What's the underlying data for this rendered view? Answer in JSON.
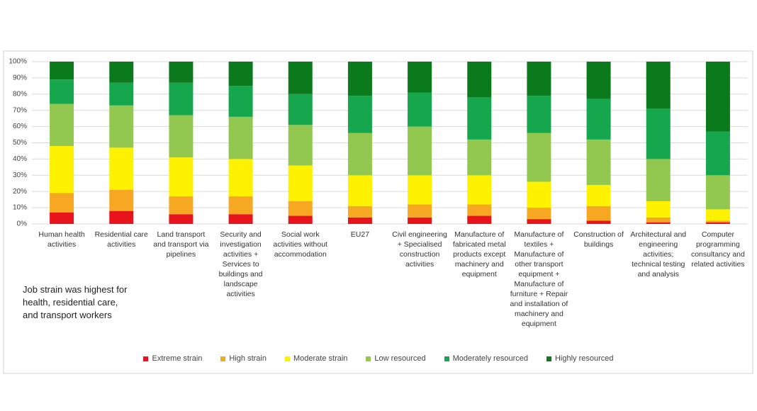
{
  "chart_data": {
    "type": "stacked-bar",
    "annotation": "Job strain was highest for health, residential care, and transport workers",
    "categories": [
      "Human health activities",
      "Residential care activities",
      "Land transport and transport via pipelines",
      "Security and investigation activities + Services to buildings and landscape activities",
      "Social work activities without accommodation",
      "EU27",
      "Civil engineering + Specialised construction activities",
      "Manufacture of fabricated metal products except machinery and equipment",
      "Manufacture of textiles + Manufacture of other transport equipment + Manufacture of furniture + Repair and installation of machinery and equipment",
      "Construction of buildings",
      "Architectural and engineering activities; technical testing and analysis",
      "Computer programming consultancy and related activities"
    ],
    "series": [
      {
        "name": "Extreme strain",
        "color": "#e8141b",
        "values": [
          7,
          8,
          6,
          6,
          5,
          4,
          4,
          5,
          3,
          2,
          1,
          1
        ]
      },
      {
        "name": "High strain",
        "color": "#f7a823",
        "values": [
          12,
          13,
          11,
          11,
          9,
          7,
          8,
          7,
          7,
          9,
          3,
          1
        ]
      },
      {
        "name": "Moderate strain",
        "color": "#fff200",
        "values": [
          29,
          26,
          24,
          23,
          22,
          19,
          18,
          18,
          16,
          13,
          10,
          7
        ]
      },
      {
        "name": "Low resourced",
        "color": "#92c84f",
        "values": [
          26,
          26,
          26,
          26,
          25,
          26,
          30,
          22,
          30,
          28,
          26,
          21
        ]
      },
      {
        "name": "Moderately resourced",
        "color": "#15a64e",
        "values": [
          15,
          14,
          20,
          19,
          19,
          23,
          21,
          26,
          23,
          25,
          31,
          27
        ]
      },
      {
        "name": "Highly resourced",
        "color": "#0b7a1c",
        "values": [
          11,
          13,
          13,
          15,
          20,
          21,
          19,
          22,
          21,
          23,
          29,
          43
        ]
      }
    ],
    "ylim": [
      0,
      100
    ],
    "yticks": [
      {
        "value": 0,
        "label": "0%"
      },
      {
        "value": 10,
        "label": "10%"
      },
      {
        "value": 20,
        "label": "20%"
      },
      {
        "value": 30,
        "label": "30%"
      },
      {
        "value": 40,
        "label": "40%"
      },
      {
        "value": 50,
        "label": "50%"
      },
      {
        "value": 60,
        "label": "60%"
      },
      {
        "value": 70,
        "label": "70%"
      },
      {
        "value": 80,
        "label": "80%"
      },
      {
        "value": 90,
        "label": "90%"
      },
      {
        "value": 100,
        "label": "100%"
      }
    ],
    "grid": true
  }
}
